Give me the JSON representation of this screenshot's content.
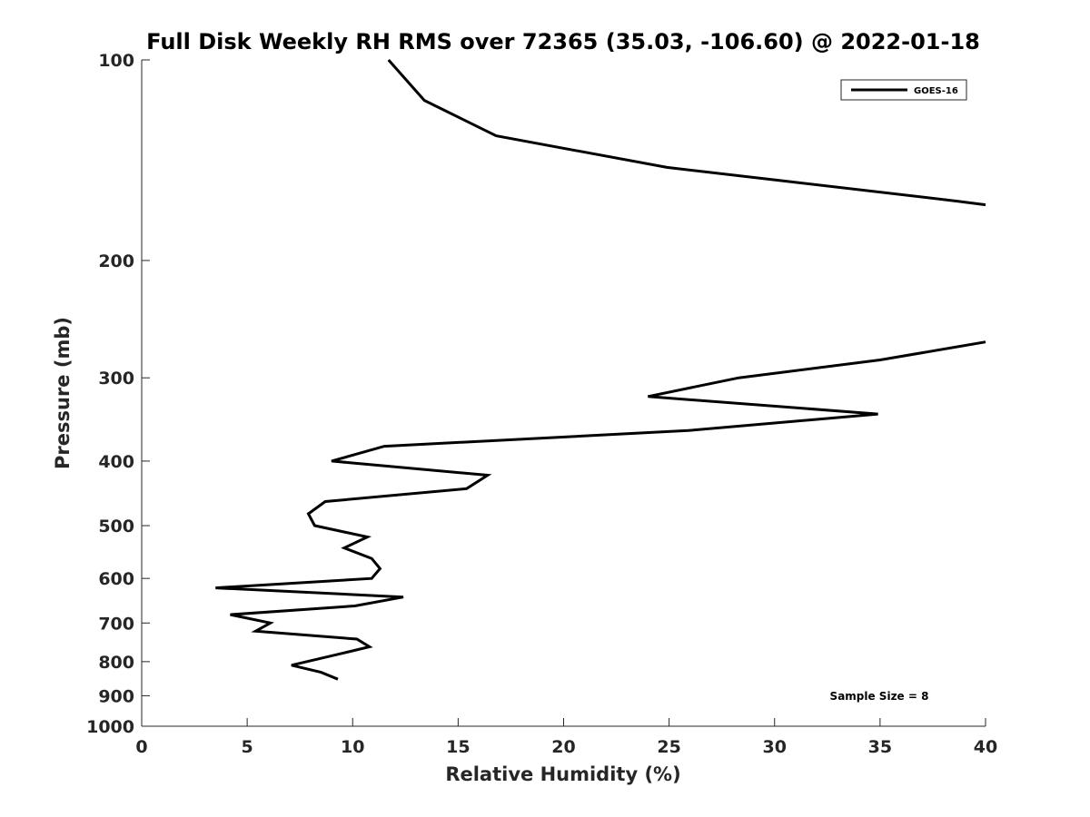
{
  "chart_data": {
    "type": "line",
    "title": "Full Disk Weekly RH RMS over 72365 (35.03, -106.60) @ 2022-01-18",
    "xlabel": "Relative Humidity (%)",
    "ylabel": "Pressure (mb)",
    "xlim": [
      0,
      40
    ],
    "ylim": [
      100,
      1000
    ],
    "y_scale": "log",
    "y_reversed": true,
    "x_ticks": [
      "0",
      "5",
      "10",
      "15",
      "20",
      "25",
      "30",
      "35",
      "40"
    ],
    "y_ticks": [
      "100",
      "200",
      "300",
      "400",
      "500",
      "600",
      "700",
      "800",
      "900",
      "1000"
    ],
    "grid": false,
    "legend_position": "top-right",
    "annotation": "Sample Size = 8",
    "series": [
      {
        "name": "GOES-16",
        "color": "#000000",
        "segments": [
          [
            {
              "x": 11.7,
              "y": 100
            },
            {
              "x": 13.4,
              "y": 115
            },
            {
              "x": 16.8,
              "y": 130
            },
            {
              "x": 24.9,
              "y": 145
            },
            {
              "x": 30.5,
              "y": 152
            },
            {
              "x": 38.7,
              "y": 163
            },
            {
              "x": 40.0,
              "y": 165
            }
          ],
          [
            {
              "x": 40.0,
              "y": 265
            },
            {
              "x": 35.0,
              "y": 282
            },
            {
              "x": 28.3,
              "y": 300
            },
            {
              "x": 24.0,
              "y": 320
            },
            {
              "x": 34.9,
              "y": 340
            },
            {
              "x": 25.9,
              "y": 360
            },
            {
              "x": 11.5,
              "y": 380
            },
            {
              "x": 9.0,
              "y": 400
            },
            {
              "x": 16.4,
              "y": 420
            },
            {
              "x": 15.4,
              "y": 440
            },
            {
              "x": 8.7,
              "y": 460
            },
            {
              "x": 7.9,
              "y": 480
            },
            {
              "x": 8.2,
              "y": 500
            },
            {
              "x": 10.7,
              "y": 520
            },
            {
              "x": 9.6,
              "y": 540
            },
            {
              "x": 10.9,
              "y": 560
            },
            {
              "x": 11.3,
              "y": 580
            },
            {
              "x": 10.9,
              "y": 600
            },
            {
              "x": 3.5,
              "y": 620
            },
            {
              "x": 12.4,
              "y": 640
            },
            {
              "x": 10.1,
              "y": 660
            },
            {
              "x": 4.2,
              "y": 680
            },
            {
              "x": 6.1,
              "y": 700
            },
            {
              "x": 5.4,
              "y": 720
            },
            {
              "x": 10.2,
              "y": 740
            },
            {
              "x": 10.8,
              "y": 760
            },
            {
              "x": 9.3,
              "y": 780
            },
            {
              "x": 7.1,
              "y": 810
            },
            {
              "x": 8.5,
              "y": 830
            },
            {
              "x": 9.3,
              "y": 850
            }
          ]
        ]
      }
    ]
  }
}
